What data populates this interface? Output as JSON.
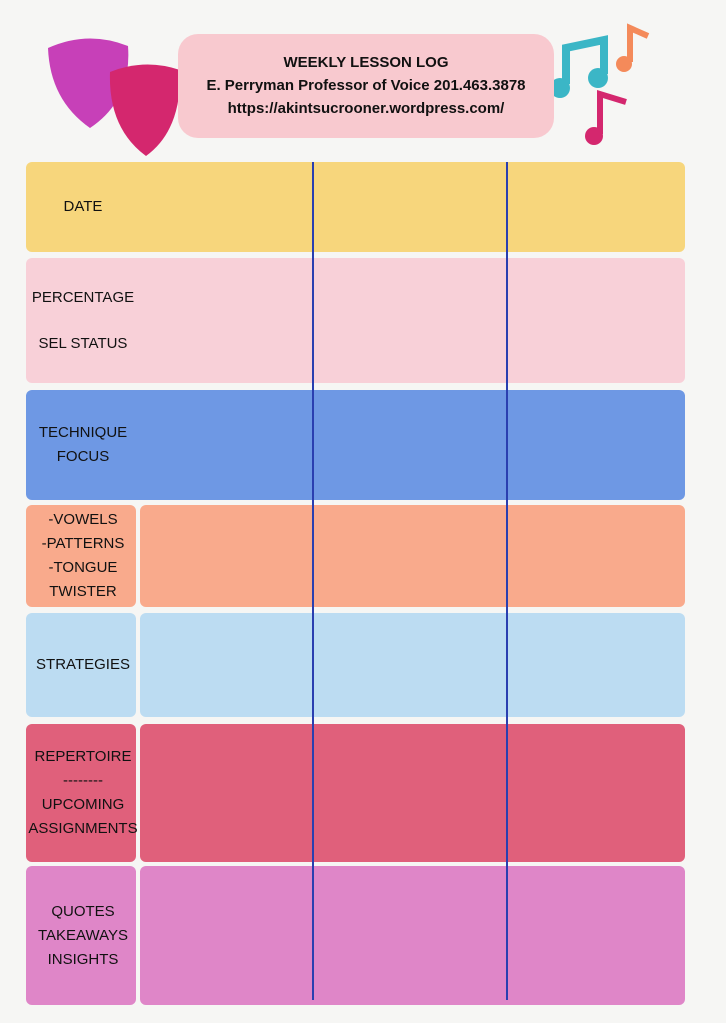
{
  "header": {
    "title": "WEEKLY LESSON LOG",
    "subtitle": "E. Perryman Professor of Voice  201.463.3878",
    "url": "https://akintsucrooner.wordpress.com/"
  },
  "rows": [
    {
      "lines": [
        "DATE"
      ]
    },
    {
      "lines": [
        "PERCENTAGE",
        "SEL STATUS"
      ]
    },
    {
      "lines": [
        "TECHNIQUE",
        "FOCUS"
      ]
    },
    {
      "lines": [
        "-VOWELS",
        "-PATTERNS",
        "-TONGUE",
        "TWISTER"
      ]
    },
    {
      "lines": [
        "STRATEGIES"
      ]
    },
    {
      "lines": [
        "REPERTOIRE",
        "--------",
        "UPCOMING",
        "ASSIGNMENTS"
      ]
    },
    {
      "lines": [
        "QUOTES",
        "TAKEAWAYS",
        "INSIGHTS"
      ]
    }
  ]
}
